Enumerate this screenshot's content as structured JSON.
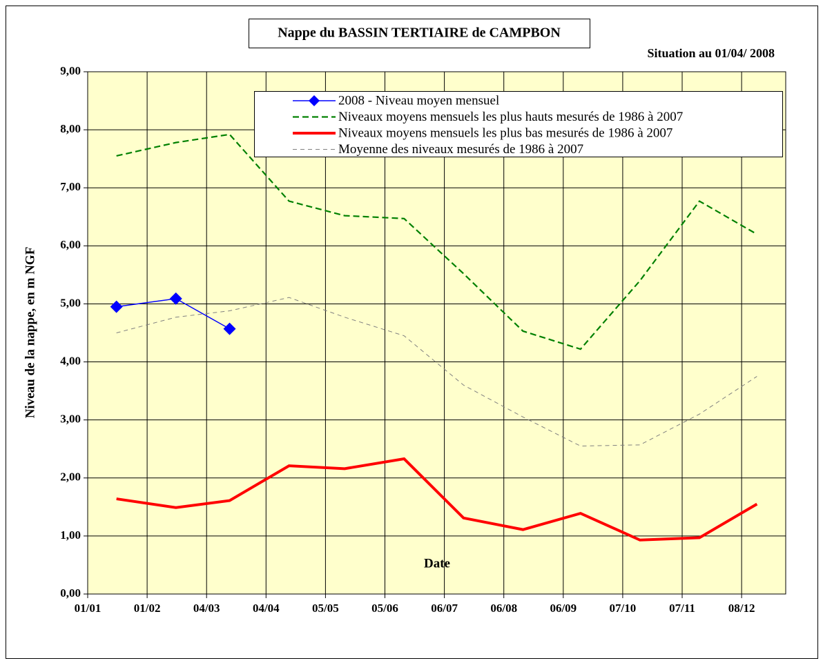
{
  "chart_data": {
    "type": "line",
    "title": "Nappe du BASSIN TERTIAIRE de CAMPBON",
    "subtitle": "Situation au 01/04/ 2008",
    "x_label": "Date",
    "y_label": "Niveau de la nappe, en m NGF",
    "x": [
      15,
      46,
      74,
      105,
      134,
      165,
      196,
      227,
      257,
      288,
      319,
      349
    ],
    "xlim": [
      0,
      364
    ],
    "xticks": [
      {
        "value": 0,
        "label": "01/01"
      },
      {
        "value": 31,
        "label": "01/02"
      },
      {
        "value": 62,
        "label": "04/03"
      },
      {
        "value": 93,
        "label": "04/04"
      },
      {
        "value": 124,
        "label": "05/05"
      },
      {
        "value": 155,
        "label": "05/06"
      },
      {
        "value": 186,
        "label": "06/07"
      },
      {
        "value": 217,
        "label": "06/08"
      },
      {
        "value": 248,
        "label": "06/09"
      },
      {
        "value": 279,
        "label": "07/10"
      },
      {
        "value": 310,
        "label": "07/11"
      },
      {
        "value": 341,
        "label": "08/12"
      }
    ],
    "ylim": [
      0,
      9
    ],
    "yticks": [
      {
        "value": 0,
        "label": "0,00"
      },
      {
        "value": 1,
        "label": "1,00"
      },
      {
        "value": 2,
        "label": "2,00"
      },
      {
        "value": 3,
        "label": "3,00"
      },
      {
        "value": 4,
        "label": "4,00"
      },
      {
        "value": 5,
        "label": "5,00"
      },
      {
        "value": 6,
        "label": "6,00"
      },
      {
        "value": 7,
        "label": "7,00"
      },
      {
        "value": 8,
        "label": "8,00"
      },
      {
        "value": 9,
        "label": "9,00"
      }
    ],
    "grid": true,
    "legend": "top-right",
    "series": [
      {
        "name": "2008 - Niveau moyen mensuel",
        "color": "#0000ff",
        "marker": "diamond",
        "line_style": "solid",
        "values": [
          4.95,
          5.09,
          4.57,
          null,
          null,
          null,
          null,
          null,
          null,
          null,
          null,
          null
        ]
      },
      {
        "name": "Niveaux moyens mensuels les plus hauts mesurés de 1986 à 2007",
        "color": "#008000",
        "line_style": "dashed",
        "values": [
          7.55,
          7.78,
          7.92,
          6.77,
          6.52,
          6.47,
          5.52,
          4.53,
          4.22,
          5.4,
          6.77,
          6.2
        ]
      },
      {
        "name": "Niveaux moyens mensuels les plus bas mesurés de 1986 à 2007",
        "color": "#ff0000",
        "line_style": "solid",
        "values": [
          1.64,
          1.49,
          1.61,
          2.21,
          2.16,
          2.33,
          1.31,
          1.11,
          1.39,
          0.93,
          0.97,
          1.55
        ]
      },
      {
        "name": "Moyenne des niveaux mesurés de 1986 à 2007",
        "color": "#808080",
        "line_style": "dashed",
        "values": [
          4.5,
          4.77,
          4.88,
          5.11,
          4.77,
          4.45,
          3.6,
          3.05,
          2.55,
          2.57,
          3.1,
          3.75
        ]
      }
    ]
  }
}
